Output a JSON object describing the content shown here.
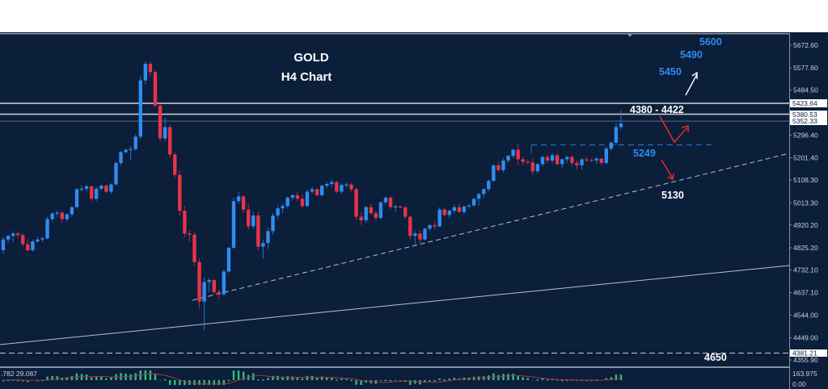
{
  "chart_data": {
    "type": "candlestick",
    "title": "GOLD",
    "subtitle": "H4 Chart",
    "xlabel": "",
    "ylabel": "",
    "ylim": [
      4355.9,
      5672.6
    ],
    "grid": false,
    "y_ticks": [
      "5672.60",
      "5577.60",
      "5484.50",
      "5296.40",
      "5201.40",
      "5108.30",
      "5013.30",
      "4920.20",
      "4825.20",
      "4732.10",
      "4637.10",
      "4544.00",
      "4449.00",
      "4355.90"
    ],
    "price_boxes": [
      "5423.64",
      "5380.53",
      "5352.33",
      "4381.21"
    ],
    "annotations": {
      "targets_up": [
        "5450",
        "5490",
        "5600"
      ],
      "resistance_zone": "4380 - 4422",
      "support_1": "5249",
      "support_2": "5130",
      "support_3": "4650"
    },
    "horizontal_levels": [
      5423.64,
      5380.53,
      5352.33,
      5260,
      4381.21
    ],
    "oscillator": {
      "label": ".782 29.087",
      "ticks": [
        "163.975",
        "0.00"
      ]
    },
    "colors": {
      "background": "#0b1e3a",
      "bull": "#2f8cf0",
      "bear": "#e8334a",
      "level_line": "#c8ccd2",
      "osc_hist": "#2ec27e",
      "osc_signal": "#b0304a",
      "annotation_blue": "#2f8cf0",
      "arrow_red": "#e02b2b"
    },
    "candles": [
      [
        4815,
        4870,
        4800,
        4860
      ],
      [
        4860,
        4880,
        4845,
        4875
      ],
      [
        4875,
        4895,
        4850,
        4885
      ],
      [
        4885,
        4890,
        4865,
        4878
      ],
      [
        4878,
        4885,
        4830,
        4840
      ],
      [
        4840,
        4860,
        4810,
        4815
      ],
      [
        4815,
        4860,
        4810,
        4852
      ],
      [
        4852,
        4870,
        4845,
        4860
      ],
      [
        4860,
        4870,
        4850,
        4865
      ],
      [
        4865,
        4955,
        4860,
        4945
      ],
      [
        4945,
        4975,
        4935,
        4968
      ],
      [
        4968,
        4980,
        4955,
        4972
      ],
      [
        4972,
        4978,
        4930,
        4945
      ],
      [
        4945,
        4970,
        4935,
        4965
      ],
      [
        4965,
        5000,
        4955,
        4995
      ],
      [
        4995,
        5075,
        4990,
        5070
      ],
      [
        5070,
        5085,
        5060,
        5072
      ],
      [
        5072,
        5090,
        5060,
        5082
      ],
      [
        5082,
        5085,
        5020,
        5030
      ],
      [
        5030,
        5080,
        5020,
        5072
      ],
      [
        5072,
        5090,
        5065,
        5085
      ],
      [
        5085,
        5092,
        5055,
        5060
      ],
      [
        5060,
        5095,
        5050,
        5090
      ],
      [
        5090,
        5185,
        5085,
        5180
      ],
      [
        5180,
        5230,
        5170,
        5225
      ],
      [
        5225,
        5240,
        5220,
        5235
      ],
      [
        5235,
        5250,
        5190,
        5238
      ],
      [
        5238,
        5300,
        5230,
        5290
      ],
      [
        5290,
        5545,
        5280,
        5525
      ],
      [
        5525,
        5605,
        5510,
        5595
      ],
      [
        5595,
        5605,
        5540,
        5560
      ],
      [
        5560,
        5570,
        5410,
        5420
      ],
      [
        5420,
        5430,
        5270,
        5283
      ],
      [
        5283,
        5370,
        5270,
        5330
      ],
      [
        5330,
        5340,
        5200,
        5215
      ],
      [
        5215,
        5225,
        5120,
        5130
      ],
      [
        5130,
        5150,
        4960,
        4980
      ],
      [
        4980,
        5000,
        4870,
        4885
      ],
      [
        4885,
        4900,
        4850,
        4880
      ],
      [
        4880,
        4890,
        4750,
        4765
      ],
      [
        4765,
        4780,
        4570,
        4600
      ],
      [
        4600,
        4700,
        4480,
        4682
      ],
      [
        4682,
        4700,
        4640,
        4690
      ],
      [
        4690,
        4695,
        4630,
        4640
      ],
      [
        4640,
        4650,
        4610,
        4630
      ],
      [
        4630,
        4735,
        4625,
        4726
      ],
      [
        4726,
        4830,
        4720,
        4825
      ],
      [
        4825,
        5035,
        4820,
        5020
      ],
      [
        5020,
        5060,
        5010,
        5040
      ],
      [
        5040,
        5045,
        4970,
        4985
      ],
      [
        4985,
        5010,
        4900,
        4915
      ],
      [
        4915,
        4975,
        4905,
        4960
      ],
      [
        4960,
        4975,
        4815,
        4830
      ],
      [
        4830,
        4860,
        4780,
        4845
      ],
      [
        4845,
        4910,
        4820,
        4895
      ],
      [
        4895,
        4970,
        4880,
        4960
      ],
      [
        4960,
        5005,
        4945,
        4990
      ],
      [
        4990,
        5010,
        4970,
        5000
      ],
      [
        5000,
        5040,
        4990,
        5035
      ],
      [
        5035,
        5050,
        5025,
        5045
      ],
      [
        5045,
        5060,
        5020,
        5030
      ],
      [
        5030,
        5050,
        4990,
        5000
      ],
      [
        5000,
        5070,
        4995,
        5060
      ],
      [
        5060,
        5080,
        5050,
        5070
      ],
      [
        5070,
        5075,
        5040,
        5045
      ],
      [
        5045,
        5090,
        5040,
        5085
      ],
      [
        5085,
        5100,
        5075,
        5092
      ],
      [
        5092,
        5110,
        5080,
        5100
      ],
      [
        5100,
        5105,
        5050,
        5060
      ],
      [
        5060,
        5095,
        5050,
        5088
      ],
      [
        5088,
        5100,
        5075,
        5090
      ],
      [
        5090,
        5098,
        5060,
        5070
      ],
      [
        5070,
        5080,
        4940,
        4955
      ],
      [
        4955,
        4975,
        4920,
        4940
      ],
      [
        4940,
        5000,
        4930,
        4995
      ],
      [
        4995,
        5010,
        4960,
        4970
      ],
      [
        4970,
        4980,
        4940,
        4950
      ],
      [
        4950,
        5020,
        4945,
        5015
      ],
      [
        5015,
        5040,
        5005,
        5035
      ],
      [
        5035,
        5040,
        4985,
        4995
      ],
      [
        4995,
        5005,
        4975,
        4998
      ],
      [
        4998,
        5002,
        4990,
        4994
      ],
      [
        4994,
        5000,
        4945,
        4955
      ],
      [
        4955,
        4960,
        4860,
        4875
      ],
      [
        4875,
        4895,
        4840,
        4885
      ],
      [
        4885,
        4900,
        4845,
        4860
      ],
      [
        4860,
        4910,
        4855,
        4905
      ],
      [
        4905,
        4925,
        4895,
        4920
      ],
      [
        4920,
        4940,
        4900,
        4915
      ],
      [
        4915,
        4995,
        4910,
        4985
      ],
      [
        4985,
        4995,
        4955,
        4962
      ],
      [
        4962,
        4985,
        4950,
        4980
      ],
      [
        4980,
        5005,
        4970,
        4995
      ],
      [
        4995,
        5010,
        4970,
        4975
      ],
      [
        4975,
        5002,
        4965,
        4998
      ],
      [
        4998,
        5010,
        4990,
        5002
      ],
      [
        5002,
        5035,
        4995,
        5030
      ],
      [
        5030,
        5055,
        5000,
        5050
      ],
      [
        5050,
        5075,
        5035,
        5070
      ],
      [
        5070,
        5110,
        5060,
        5105
      ],
      [
        5105,
        5175,
        5100,
        5170
      ],
      [
        5170,
        5185,
        5145,
        5150
      ],
      [
        5150,
        5200,
        5140,
        5190
      ],
      [
        5190,
        5215,
        5180,
        5210
      ],
      [
        5210,
        5240,
        5200,
        5235
      ],
      [
        5235,
        5262,
        5170,
        5195
      ],
      [
        5195,
        5205,
        5170,
        5185
      ],
      [
        5185,
        5195,
        5175,
        5182
      ],
      [
        5182,
        5200,
        5130,
        5145
      ],
      [
        5145,
        5180,
        5135,
        5175
      ],
      [
        5175,
        5210,
        5165,
        5205
      ],
      [
        5205,
        5215,
        5180,
        5190
      ],
      [
        5190,
        5220,
        5180,
        5212
      ],
      [
        5212,
        5222,
        5170,
        5175
      ],
      [
        5175,
        5200,
        5160,
        5195
      ],
      [
        5195,
        5210,
        5180,
        5205
      ],
      [
        5205,
        5212,
        5170,
        5180
      ],
      [
        5180,
        5192,
        5150,
        5170
      ],
      [
        5170,
        5200,
        5150,
        5195
      ],
      [
        5195,
        5205,
        5185,
        5192
      ],
      [
        5192,
        5200,
        5185,
        5190
      ],
      [
        5190,
        5205,
        5175,
        5198
      ],
      [
        5198,
        5202,
        5170,
        5180
      ],
      [
        5180,
        5250,
        5175,
        5240
      ],
      [
        5240,
        5270,
        5230,
        5265
      ],
      [
        5265,
        5345,
        5255,
        5330
      ],
      [
        5330,
        5400,
        5320,
        5345
      ]
    ]
  },
  "chart_window": {
    "title": "GOLD",
    "subtitle": "H4 Chart"
  }
}
